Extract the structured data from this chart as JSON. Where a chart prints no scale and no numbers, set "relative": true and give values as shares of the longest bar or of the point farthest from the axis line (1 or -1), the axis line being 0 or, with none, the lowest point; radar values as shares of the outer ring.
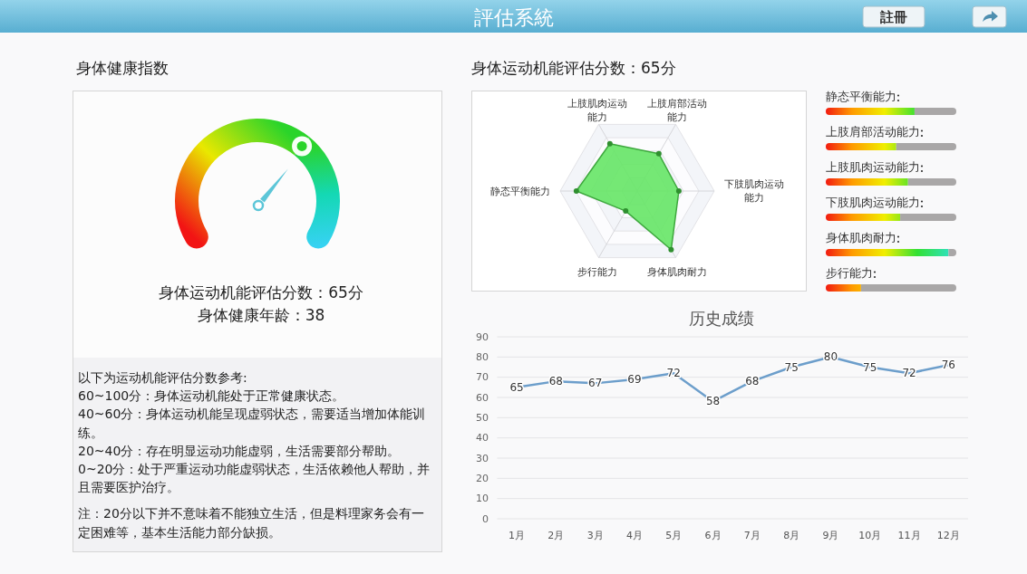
{
  "chart_data": [
    {
      "type": "other",
      "title": "評估系統",
      "annotations": [
        "註冊"
      ]
    },
    {
      "type": "donut",
      "title": "身体健康指数",
      "categories": [
        null,
        null
      ],
      "values": [
        65,
        35
      ],
      "colors": [
        "#e9e800",
        "#14d8b4"
      ],
      "annotations": [
        "身体运动机能评估分数：65分",
        "身体健康年龄：38",
        "以下为运动机能评估分数参考:",
        "60~100分：身体运动机能处于正常健康状态。",
        "40~60分：身体运动机能呈现虚弱状态，需要适当增加体能训练。",
        "20~40分：存在明显运动功能虚弱，生活需要部分帮助。",
        "0~20分：处于严重运动功能虚弱状态，生活依赖他人帮助，并且需要医护治疗。",
        "注：20分以下并不意味着不能独立生活，但是料理家务会有一定困难等，基本生活能力部分缺损。"
      ]
    },
    {
      "type": "radar",
      "title": "身体运动机能评估分数：65分",
      "relative": true,
      "marker": "circle",
      "categories": [
        "上肢肩部活动能力",
        "下肢肌肉运动能力",
        "身体肌肉耐力",
        "步行能力",
        "静态平衡能力",
        "上肢肌肉运动能力"
      ],
      "series": [
        {
          "color": "#66e666",
          "values": [
            0.56,
            0.54,
            0.88,
            0.3,
            0.79,
            0.71
          ]
        }
      ]
    },
    {
      "type": "bar",
      "orientation": "horizontal",
      "stacked": true,
      "relative": true,
      "categories": [
        "静态平衡能力",
        "上肢肩部活动能力",
        "上肢肌肉运动能力",
        "下肢肌肉运动能力",
        "身体肌肉耐力",
        "步行能力"
      ],
      "series": [
        {
          "color": "#ff9a00",
          "values": [
            0.68,
            0.54,
            0.63,
            0.57,
            0.94,
            0.27
          ]
        },
        {
          "color": "#a9a7a7",
          "values": [
            0.32,
            0.46,
            0.37,
            0.43,
            0.06,
            0.73
          ]
        }
      ]
    },
    {
      "type": "line",
      "title": "历史成绩",
      "categories": [
        "1月",
        "2月",
        "3月",
        "4月",
        "5月",
        "6月",
        "7月",
        "8月",
        "9月",
        "10月",
        "11月",
        "12月"
      ],
      "values": [
        65,
        68,
        67,
        69,
        72,
        58,
        68,
        75,
        80,
        75,
        72,
        76
      ],
      "color": "#6c9ecb",
      "ylim": [
        0,
        90
      ],
      "yticks": [
        0,
        10,
        20,
        30,
        40,
        50,
        60,
        70,
        80,
        90
      ],
      "grid": "y",
      "data_labels": true
    }
  ]
}
